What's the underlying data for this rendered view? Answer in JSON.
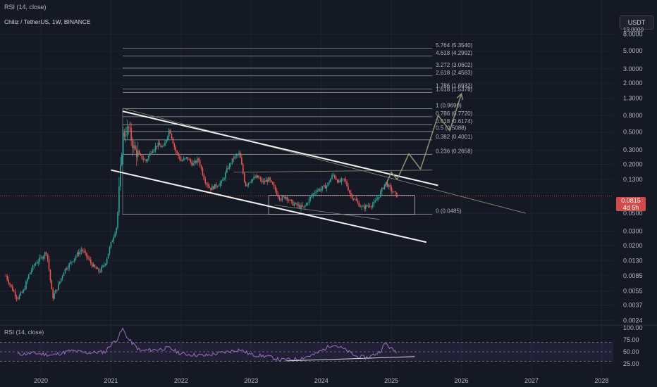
{
  "header": {
    "top_indicator": "RSI (14, close)",
    "symbol_line": "Chiliz / TetherUS, 1W, BINANCE",
    "currency_button": "USDT",
    "price_tag": "0.0815",
    "countdown": "4d 5h",
    "top_axis_cutoff": "13.0000"
  },
  "rsi_pane": {
    "label": "RSI (14, close)",
    "ticks": [
      {
        "value": 100,
        "label": "100.00"
      },
      {
        "value": 75,
        "label": "75.00"
      },
      {
        "value": 50,
        "label": "50.00"
      },
      {
        "value": 25,
        "label": "25.00"
      }
    ],
    "overbought": 70,
    "oversold": 30,
    "line_color": "#9c6fbe",
    "band_color": "#7e57c2"
  },
  "chart_data": {
    "type": "candlestick",
    "title": "Chiliz / TetherUS, 1W, BINANCE",
    "y_scale": "log",
    "ylim": [
      0.0021,
      9.5
    ],
    "x_range": [
      "2019-06",
      "2028-03"
    ],
    "x_ticks": [
      "2020",
      "2021",
      "2022",
      "2023",
      "2024",
      "2025",
      "2026",
      "2027",
      "2028"
    ],
    "y_ticks": [
      {
        "value": 8.0,
        "label": "8.0000"
      },
      {
        "value": 5.0,
        "label": "5.0000"
      },
      {
        "value": 3.0,
        "label": "3.0000"
      },
      {
        "value": 2.0,
        "label": "2.0000"
      },
      {
        "value": 1.3,
        "label": "1.3000"
      },
      {
        "value": 0.8,
        "label": "0.8000"
      },
      {
        "value": 0.5,
        "label": "0.5000"
      },
      {
        "value": 0.3,
        "label": "0.3000"
      },
      {
        "value": 0.2,
        "label": "0.2000"
      },
      {
        "value": 0.13,
        "label": "0.1300"
      },
      {
        "value": 0.05,
        "label": "0.0500"
      },
      {
        "value": 0.03,
        "label": "0.0300"
      },
      {
        "value": 0.02,
        "label": "0.0200"
      },
      {
        "value": 0.013,
        "label": "0.0130"
      },
      {
        "value": 0.0085,
        "label": "0.0085"
      },
      {
        "value": 0.0055,
        "label": "0.0055"
      },
      {
        "value": 0.0037,
        "label": "0.0037"
      },
      {
        "value": 0.0024,
        "label": "0.0024"
      }
    ],
    "last_price": 0.0815,
    "price_path": [
      [
        "2019-07",
        0.0085
      ],
      [
        "2019-08",
        0.006
      ],
      [
        "2019-09",
        0.0045
      ],
      [
        "2019-10",
        0.0055
      ],
      [
        "2019-11",
        0.009
      ],
      [
        "2019-12",
        0.012
      ],
      [
        "2020-01",
        0.014
      ],
      [
        "2020-02",
        0.017
      ],
      [
        "2020-03",
        0.0045
      ],
      [
        "2020-04",
        0.0065
      ],
      [
        "2020-05",
        0.01
      ],
      [
        "2020-06",
        0.012
      ],
      [
        "2020-07",
        0.015
      ],
      [
        "2020-08",
        0.018
      ],
      [
        "2020-09",
        0.014
      ],
      [
        "2020-10",
        0.011
      ],
      [
        "2020-11",
        0.0095
      ],
      [
        "2020-12",
        0.012
      ],
      [
        "2021-01",
        0.021
      ],
      [
        "2021-02",
        0.035
      ],
      [
        "2021-03",
        0.45
      ],
      [
        "2021-04",
        0.55
      ],
      [
        "2021-05",
        0.3
      ],
      [
        "2021-06",
        0.25
      ],
      [
        "2021-07",
        0.22
      ],
      [
        "2021-08",
        0.3
      ],
      [
        "2021-09",
        0.35
      ],
      [
        "2021-10",
        0.32
      ],
      [
        "2021-11",
        0.55
      ],
      [
        "2021-12",
        0.3
      ],
      [
        "2022-01",
        0.22
      ],
      [
        "2022-02",
        0.24
      ],
      [
        "2022-03",
        0.2
      ],
      [
        "2022-04",
        0.23
      ],
      [
        "2022-05",
        0.13
      ],
      [
        "2022-06",
        0.1
      ],
      [
        "2022-07",
        0.11
      ],
      [
        "2022-08",
        0.12
      ],
      [
        "2022-09",
        0.18
      ],
      [
        "2022-10",
        0.24
      ],
      [
        "2022-11",
        0.27
      ],
      [
        "2022-12",
        0.11
      ],
      [
        "2023-01",
        0.13
      ],
      [
        "2023-02",
        0.14
      ],
      [
        "2023-03",
        0.12
      ],
      [
        "2023-04",
        0.13
      ],
      [
        "2023-05",
        0.1
      ],
      [
        "2023-06",
        0.075
      ],
      [
        "2023-07",
        0.08
      ],
      [
        "2023-08",
        0.066
      ],
      [
        "2023-09",
        0.062
      ],
      [
        "2023-10",
        0.058
      ],
      [
        "2023-11",
        0.075
      ],
      [
        "2023-12",
        0.095
      ],
      [
        "2024-01",
        0.1
      ],
      [
        "2024-02",
        0.11
      ],
      [
        "2024-03",
        0.15
      ],
      [
        "2024-04",
        0.12
      ],
      [
        "2024-05",
        0.13
      ],
      [
        "2024-06",
        0.085
      ],
      [
        "2024-07",
        0.07
      ],
      [
        "2024-08",
        0.058
      ],
      [
        "2024-09",
        0.062
      ],
      [
        "2024-10",
        0.065
      ],
      [
        "2024-11",
        0.085
      ],
      [
        "2024-12",
        0.12
      ],
      [
        "2025-01",
        0.095
      ],
      [
        "2025-02",
        0.0815
      ]
    ],
    "fibonacci": {
      "levels": [
        {
          "ratio": "5.764",
          "price": 5.354
        },
        {
          "ratio": "4.618",
          "price": 4.2992
        },
        {
          "ratio": "3.272",
          "price": 3.0602
        },
        {
          "ratio": "2.618",
          "price": 2.4583
        },
        {
          "ratio": "1.786",
          "price": 1.6932
        },
        {
          "ratio": "1.618",
          "price": 1.5378
        },
        {
          "ratio": "1",
          "price": 0.969
        },
        {
          "ratio": "0.786",
          "price": 0.772
        },
        {
          "ratio": "0.618",
          "price": 0.6174
        },
        {
          "ratio": "0.5",
          "price": 0.5088
        },
        {
          "ratio": "0.382",
          "price": 0.4001
        },
        {
          "ratio": "0.236",
          "price": 0.2658
        },
        {
          "ratio": "0",
          "price": 0.0485
        }
      ],
      "from": "2021-03",
      "to": "2025-08"
    },
    "channel": {
      "upper": [
        [
          "2021-03",
          0.9
        ],
        [
          "2025-09",
          0.11
        ]
      ],
      "lower": [
        [
          "2021-01",
          0.17
        ],
        [
          "2025-07",
          0.022
        ]
      ]
    },
    "trend_lines": [
      [
        [
          "2021-03",
          0.98
        ],
        [
          "2026-12",
          0.05
        ]
      ],
      [
        [
          "2022-10",
          0.16
        ],
        [
          "2025-08",
          0.17
        ]
      ],
      [
        [
          "2023-05",
          0.063
        ],
        [
          "2024-11",
          0.042
        ]
      ]
    ],
    "range_box": {
      "x": [
        "2023-04",
        "2025-05"
      ],
      "y": [
        0.0485,
        0.083
      ]
    },
    "projection_path": [
      [
        "2024-12",
        0.11
      ],
      [
        "2025-01",
        0.16
      ],
      [
        "2025-02",
        0.13
      ],
      [
        "2025-04",
        0.27
      ],
      [
        "2025-06",
        0.175
      ],
      [
        "2025-09",
        0.8
      ],
      [
        "2025-11",
        0.52
      ],
      [
        "2026-01",
        1.48
      ]
    ],
    "rsi_values": [
      [
        "2019-09",
        45
      ],
      [
        "2019-12",
        47
      ],
      [
        "2020-03",
        43
      ],
      [
        "2020-06",
        52
      ],
      [
        "2020-09",
        48
      ],
      [
        "2020-12",
        50
      ],
      [
        "2021-01",
        66
      ],
      [
        "2021-02",
        75
      ],
      [
        "2021-03",
        98
      ],
      [
        "2021-04",
        76
      ],
      [
        "2021-06",
        52
      ],
      [
        "2021-09",
        55
      ],
      [
        "2021-11",
        58
      ],
      [
        "2022-01",
        46
      ],
      [
        "2022-05",
        42
      ],
      [
        "2022-09",
        50
      ],
      [
        "2022-11",
        55
      ],
      [
        "2023-01",
        44
      ],
      [
        "2023-04",
        40
      ],
      [
        "2023-06",
        33
      ],
      [
        "2023-09",
        35
      ],
      [
        "2023-12",
        45
      ],
      [
        "2024-03",
        66
      ],
      [
        "2024-05",
        55
      ],
      [
        "2024-07",
        40
      ],
      [
        "2024-09",
        38
      ],
      [
        "2024-11",
        50
      ],
      [
        "2024-12",
        68
      ],
      [
        "2025-01",
        56
      ],
      [
        "2025-02",
        50
      ]
    ],
    "rsi_divergence": [
      [
        "2023-07",
        31
      ],
      [
        "2025-05",
        40
      ]
    ]
  }
}
